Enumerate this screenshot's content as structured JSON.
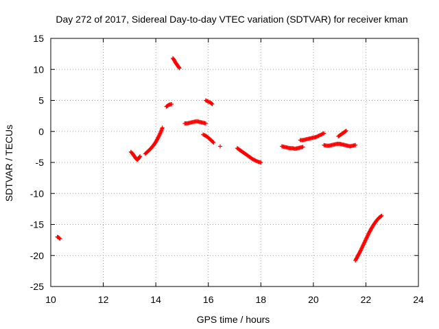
{
  "chart_data": {
    "type": "scatter",
    "title": "Day 272 of 2017, Sidereal Day-to-day VTEC variation (SDTVAR) for receiver kman",
    "xlabel": "GPS time / hours",
    "ylabel": "SDTVAR / TECUs",
    "xlim": [
      10,
      24
    ],
    "ylim": [
      -25,
      15
    ],
    "xticks": [
      "10",
      "12",
      "14",
      "16",
      "18",
      "20",
      "22",
      "24"
    ],
    "yticks": [
      "15",
      "10",
      "5",
      "0",
      "-5",
      "-10",
      "-15",
      "-20",
      "-25"
    ],
    "grid": true,
    "legend": "none",
    "marker": "plus",
    "color": "#ff0000",
    "segments": [
      {
        "x": [
          10.25,
          10.3,
          10.35
        ],
        "y": [
          -17.0,
          -17.1,
          -17.3
        ]
      },
      {
        "x": [
          13.05,
          13.1,
          13.15,
          13.2,
          13.25,
          13.3,
          13.35,
          13.4
        ],
        "y": [
          -3.3,
          -3.5,
          -3.8,
          -4.1,
          -4.4,
          -4.6,
          -4.3,
          -4.0
        ]
      },
      {
        "x": [
          13.6,
          13.7,
          13.8,
          13.9,
          14.0,
          14.1,
          14.2,
          14.25
        ],
        "y": [
          -3.6,
          -3.2,
          -2.8,
          -2.3,
          -1.7,
          -0.9,
          0.0,
          0.6
        ]
      },
      {
        "x": [
          14.4,
          14.5,
          14.6
        ],
        "y": [
          4.0,
          4.3,
          4.4
        ]
      },
      {
        "x": [
          14.65,
          14.7,
          14.75,
          14.8,
          14.85,
          14.9
        ],
        "y": [
          11.8,
          11.5,
          11.1,
          10.8,
          10.5,
          10.2
        ]
      },
      {
        "x": [
          15.1,
          15.2,
          15.3,
          15.4,
          15.5,
          15.6,
          15.7,
          15.8,
          15.9
        ],
        "y": [
          1.3,
          1.3,
          1.4,
          1.5,
          1.6,
          1.6,
          1.5,
          1.4,
          1.3
        ]
      },
      {
        "x": [
          15.8,
          15.9,
          16.0,
          16.1,
          16.2
        ],
        "y": [
          -0.5,
          -0.7,
          -1.0,
          -1.4,
          -1.8
        ]
      },
      {
        "x": [
          15.9,
          16.0,
          16.1,
          16.15
        ],
        "y": [
          5.0,
          4.8,
          4.6,
          4.4
        ]
      },
      {
        "x": [
          16.45
        ],
        "y": [
          -2.4
        ]
      },
      {
        "x": [
          17.1,
          17.2,
          17.3,
          17.4,
          17.5,
          17.6,
          17.7,
          17.8,
          17.9,
          18.0
        ],
        "y": [
          -2.7,
          -3.0,
          -3.3,
          -3.6,
          -3.9,
          -4.2,
          -4.5,
          -4.7,
          -4.9,
          -5.0
        ]
      },
      {
        "x": [
          18.8,
          18.9,
          19.0,
          19.1,
          19.2,
          19.3,
          19.4,
          19.5,
          19.6
        ],
        "y": [
          -2.4,
          -2.5,
          -2.6,
          -2.7,
          -2.7,
          -2.8,
          -2.7,
          -2.6,
          -2.5
        ]
      },
      {
        "x": [
          19.5,
          19.6,
          19.7,
          19.8,
          19.9,
          20.0,
          20.1,
          20.2,
          20.3,
          20.4
        ],
        "y": [
          -1.4,
          -1.4,
          -1.3,
          -1.2,
          -1.1,
          -1.0,
          -0.9,
          -0.7,
          -0.5,
          -0.3
        ]
      },
      {
        "x": [
          20.4,
          20.5,
          20.6,
          20.7,
          20.8,
          20.9,
          21.0,
          21.1,
          21.2,
          21.3,
          21.4,
          21.5,
          21.6
        ],
        "y": [
          -2.2,
          -2.3,
          -2.3,
          -2.2,
          -2.1,
          -2.0,
          -2.0,
          -2.1,
          -2.2,
          -2.3,
          -2.4,
          -2.3,
          -2.2
        ]
      },
      {
        "x": [
          20.95,
          21.05,
          21.15,
          21.25
        ],
        "y": [
          -0.8,
          -0.5,
          -0.2,
          0.1
        ]
      },
      {
        "x": [
          21.6,
          21.7,
          21.8,
          21.9,
          22.0,
          22.1,
          22.2,
          22.3,
          22.4,
          22.5,
          22.6
        ],
        "y": [
          -20.8,
          -20.0,
          -19.2,
          -18.3,
          -17.4,
          -16.5,
          -15.7,
          -15.0,
          -14.4,
          -13.9,
          -13.6
        ]
      }
    ]
  }
}
